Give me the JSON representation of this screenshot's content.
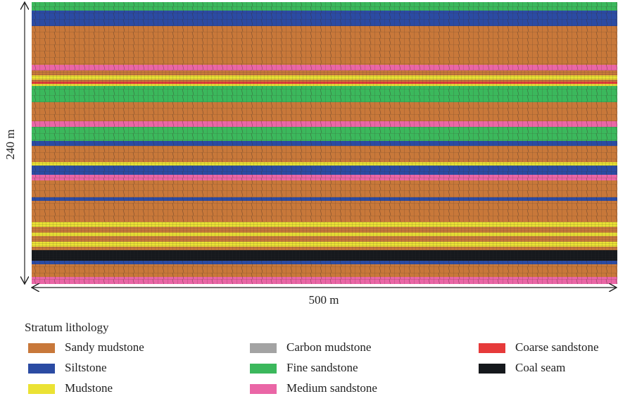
{
  "dimensions": {
    "height": "240 m",
    "width": "500 m"
  },
  "legend": {
    "title": "Stratum lithology",
    "items": [
      {
        "label": "Sandy mudstone",
        "color": "#c8783a"
      },
      {
        "label": "Siltstone",
        "color": "#2b4ba3"
      },
      {
        "label": "Mudstone",
        "color": "#ebe234"
      },
      {
        "label": "Carbon mudstone",
        "color": "#a3a3a3"
      },
      {
        "label": "Fine sandstone",
        "color": "#3bb85c"
      },
      {
        "label": "Medium sandstone",
        "color": "#ea66a6"
      },
      {
        "label": "Coarse sandstone",
        "color": "#e63a3a"
      },
      {
        "label": "Coal seam",
        "color": "#15181c"
      }
    ]
  }
}
